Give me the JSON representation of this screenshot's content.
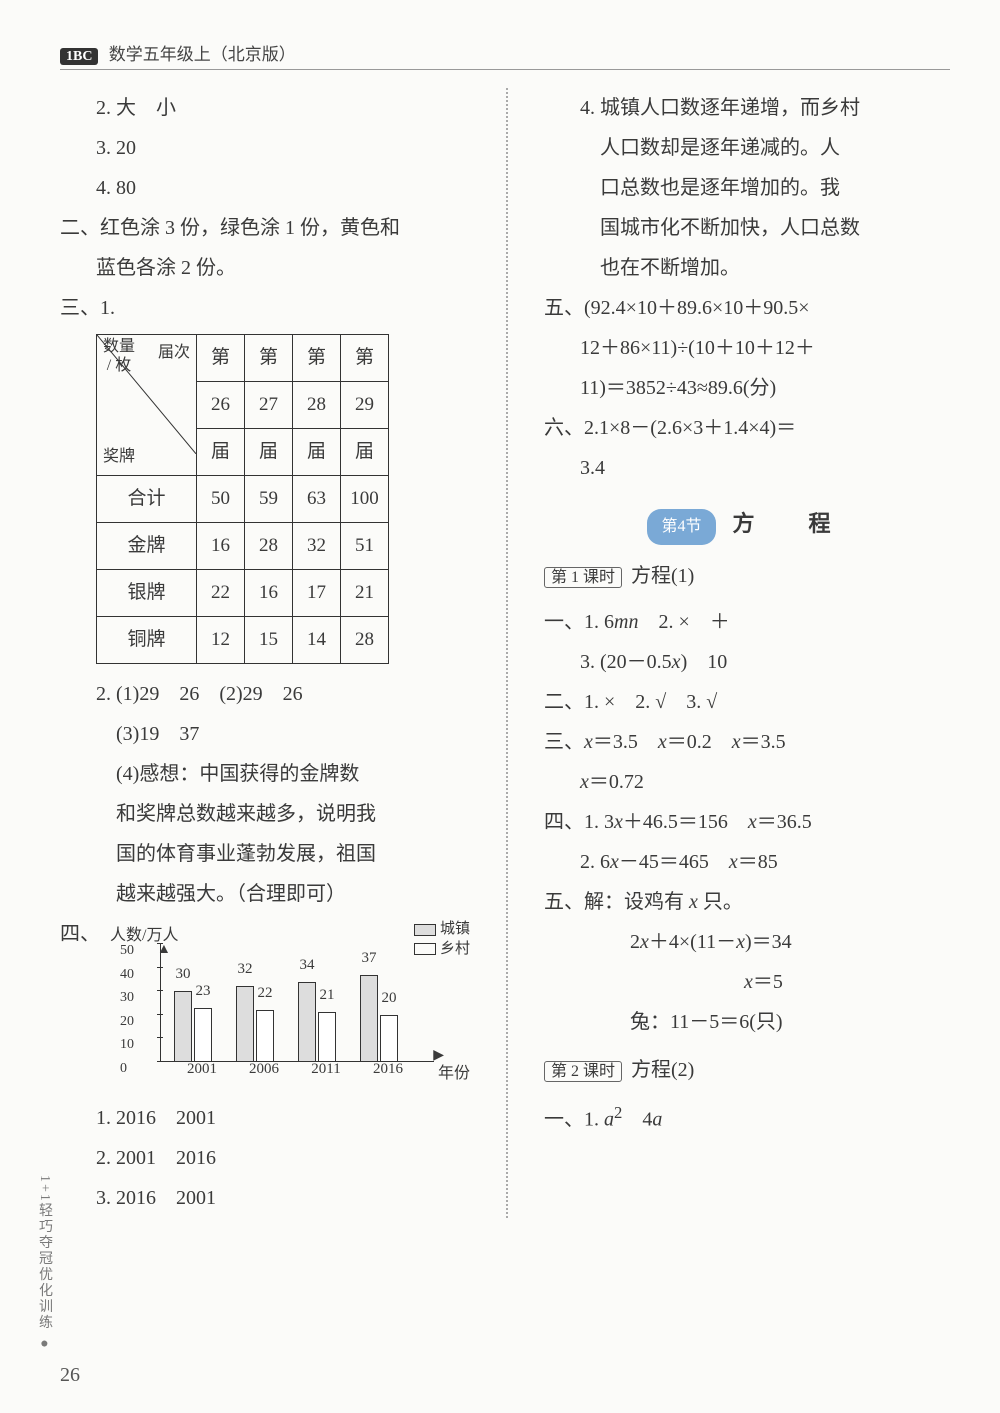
{
  "header": {
    "logo": "1BC",
    "title": "数学五年级上（北京版）"
  },
  "left": {
    "l2": "2. 大　小",
    "l3": "3. 20",
    "l4": "4. 80",
    "sec2": "二、红色涂 3 份，绿色涂 1 份，黄色和",
    "sec2b": "蓝色各涂 2 份。",
    "sec3": "三、1.",
    "table": {
      "hdr_top": "数量",
      "hdr_unit": "/ 枚",
      "hdr_bot": "奖牌",
      "hdr_jie": "届次",
      "cols_top": [
        "第",
        "第",
        "第",
        "第"
      ],
      "cols_num": [
        "26",
        "27",
        "28",
        "29"
      ],
      "cols_bot": [
        "届",
        "届",
        "届",
        "届"
      ],
      "rows": [
        {
          "label": "合计",
          "cells": [
            "50",
            "59",
            "63",
            "100"
          ]
        },
        {
          "label": "金牌",
          "cells": [
            "16",
            "28",
            "32",
            "51"
          ]
        },
        {
          "label": "银牌",
          "cells": [
            "22",
            "16",
            "17",
            "21"
          ]
        },
        {
          "label": "铜牌",
          "cells": [
            "12",
            "15",
            "14",
            "28"
          ]
        }
      ]
    },
    "q2_1": "2. (1)29　26　(2)29　26",
    "q2_3": "(3)19　37",
    "q2_4a": "(4)感想：中国获得的金牌数",
    "q2_4b": "和奖牌总数越来越多，说明我",
    "q2_4c": "国的体育事业蓬勃发展，祖国",
    "q2_4d": "越来越强大。（合理即可）",
    "sec4": "四、",
    "chart": {
      "ylabel": "人数/万人",
      "xlabel": "年份",
      "legend_town": "城镇",
      "legend_village": "乡村",
      "ymax": 50,
      "ytick_step": 10,
      "yticks": [
        {
          "v": 50,
          "label": "50"
        },
        {
          "v": 40,
          "label": "40"
        },
        {
          "v": 30,
          "label": "30"
        },
        {
          "v": 20,
          "label": "20"
        },
        {
          "v": 10,
          "label": "10"
        },
        {
          "v": 0,
          "label": "0"
        }
      ],
      "groups": [
        {
          "cat": "2001",
          "town": 30,
          "village": 23
        },
        {
          "cat": "2006",
          "town": 32,
          "village": 22
        },
        {
          "cat": "2011",
          "town": 34,
          "village": 21
        },
        {
          "cat": "2016",
          "town": 37,
          "village": 20
        }
      ],
      "bar_town_color": "#dddddd",
      "bar_village_color": "#ffffff",
      "border_color": "#333333"
    },
    "a1": "1. 2016　2001",
    "a2": "2. 2001　2016",
    "a3": "3. 2016　2001"
  },
  "right": {
    "p4a": "4. 城镇人口数逐年递增，而乡村",
    "p4b": "人口数却是逐年递减的。人",
    "p4c": "口总数也是逐年增加的。我",
    "p4d": "国城市化不断加快，人口总数",
    "p4e": "也在不断增加。",
    "sec5a": "五、(92.4×10＋89.6×10＋90.5×",
    "sec5b": "12＋86×11)÷(10＋10＋12＋",
    "sec5c": "11)＝3852÷43≈89.6(分)",
    "sec6a": "六、2.1×8－(2.6×3＋1.4×4)＝",
    "sec6b": "3.4",
    "section": {
      "badge": "第4节",
      "title": "方　程"
    },
    "lesson1": {
      "box": "第 1 课时",
      "title": "方程(1)"
    },
    "l1_1a": "一、1. 6",
    "l1_1a_it": "mn",
    "l1_1b": "　2. ×　＋",
    "l1_3": "3. (20－0.5",
    "l1_3_it": "x",
    "l1_3b": ")　10",
    "l2_1": "二、1. ×　2. √　3. √",
    "l3_1a": "三、",
    "l3_x1": "x",
    "l3_1b": "＝3.5　",
    "l3_x2": "x",
    "l3_1c": "＝0.2　",
    "l3_x3": "x",
    "l3_1d": "＝3.5",
    "l3_2a": "",
    "l3_x4": "x",
    "l3_2b": "＝0.72",
    "l4_1a": "四、1. 3",
    "l4_x1": "x",
    "l4_1b": "＋46.5＝156　",
    "l4_x2": "x",
    "l4_1c": "＝36.5",
    "l4_2a": "2. 6",
    "l4_x3": "x",
    "l4_2b": "－45＝465　",
    "l4_x4": "x",
    "l4_2c": "＝85",
    "l5_1a": "五、解：设鸡有 ",
    "l5_x1": "x",
    "l5_1b": " 只。",
    "l5_2a": "2",
    "l5_x2": "x",
    "l5_2b": "＋4×(11－",
    "l5_x3": "x",
    "l5_2c": ")＝34",
    "l5_3a": "",
    "l5_x4": "x",
    "l5_3b": "＝5",
    "l5_4": "兔：11－5＝6(只)",
    "lesson2": {
      "box": "第 2 课时",
      "title": "方程(2)"
    },
    "l2s_1a": "一、1. ",
    "l2s_a": "a",
    "l2s_sup": "2",
    "l2s_1c": "　4",
    "l2s_a2": "a"
  },
  "side": "1+1轻巧夺冠优化训练 ●",
  "pagenum": "26"
}
